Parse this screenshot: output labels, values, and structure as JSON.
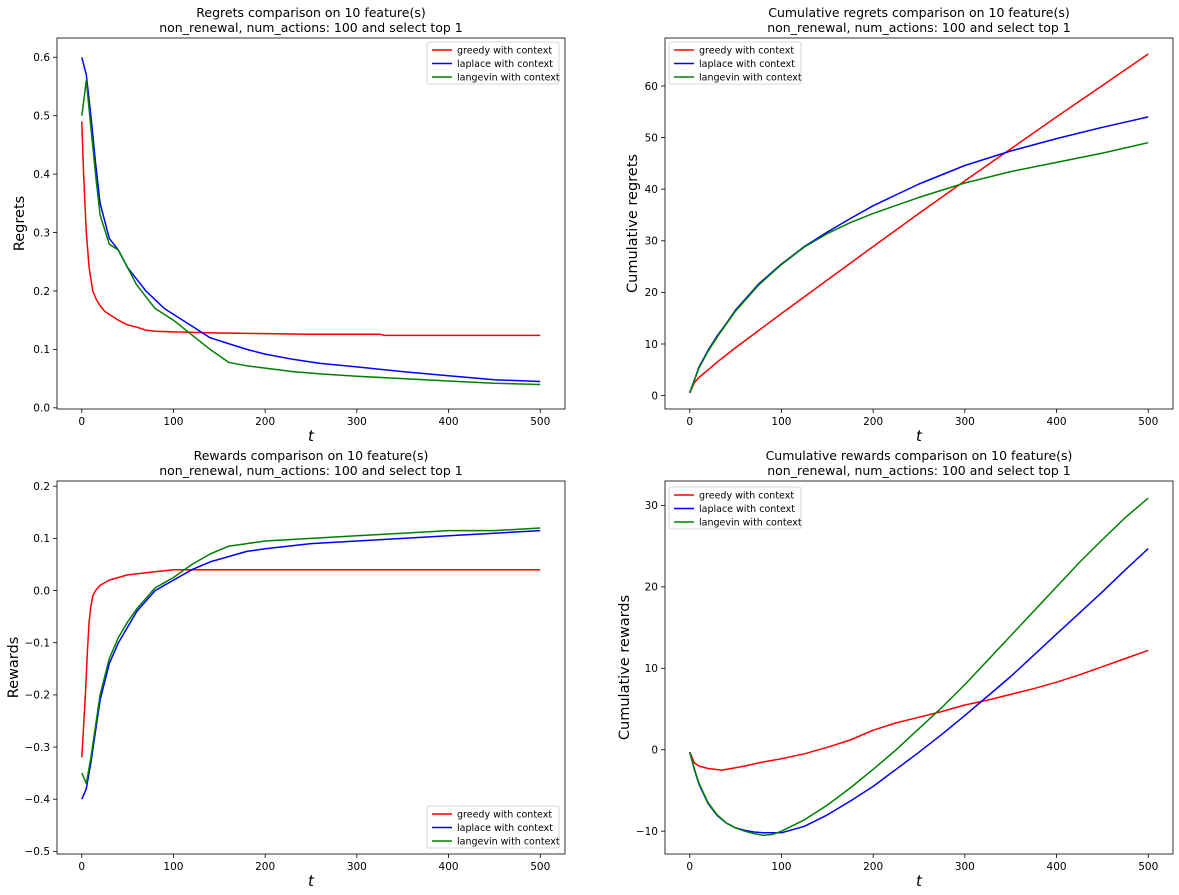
{
  "colors": {
    "greedy": "#ff0000",
    "laplace": "#0000ff",
    "langevin": "#008000"
  },
  "legend_entries": [
    "greedy with context",
    "laplace with context",
    "langevin with context"
  ],
  "chart_data": [
    {
      "type": "line",
      "id": "regrets",
      "title": "Regrets comparison on 10 feature(s)",
      "subtitle": "non_renewal, num_actions: 100 and select top 1",
      "xlabel": "t",
      "ylabel": "Regrets",
      "xlim": [
        -27,
        527
      ],
      "ylim": [
        -0.002,
        0.633
      ],
      "xticks": [
        0,
        100,
        200,
        300,
        400,
        500
      ],
      "yticks": [
        0.0,
        0.1,
        0.2,
        0.3,
        0.4,
        0.5,
        0.6
      ],
      "ytick_labels": [
        "0.0",
        "0.1",
        "0.2",
        "0.3",
        "0.4",
        "0.5",
        "0.6"
      ],
      "legend": "top-right",
      "grid": false,
      "series": [
        {
          "name": "greedy with context",
          "color_key": "greedy",
          "x": [
            0,
            2,
            5,
            8,
            12,
            16,
            20,
            25,
            30,
            40,
            50,
            60,
            70,
            80,
            100,
            150,
            200,
            250,
            300,
            325,
            330,
            400,
            450,
            500
          ],
          "y": [
            0.49,
            0.4,
            0.3,
            0.24,
            0.2,
            0.185,
            0.175,
            0.165,
            0.16,
            0.15,
            0.142,
            0.138,
            0.133,
            0.131,
            0.13,
            0.128,
            0.127,
            0.126,
            0.126,
            0.126,
            0.124,
            0.124,
            0.124,
            0.124
          ]
        },
        {
          "name": "laplace with context",
          "color_key": "laplace",
          "x": [
            0,
            5,
            10,
            15,
            20,
            30,
            40,
            50,
            60,
            70,
            80,
            90,
            100,
            120,
            140,
            160,
            180,
            200,
            230,
            260,
            300,
            350,
            400,
            450,
            500
          ],
          "y": [
            0.6,
            0.57,
            0.5,
            0.42,
            0.35,
            0.29,
            0.27,
            0.24,
            0.22,
            0.2,
            0.185,
            0.17,
            0.16,
            0.14,
            0.12,
            0.11,
            0.1,
            0.092,
            0.083,
            0.076,
            0.07,
            0.062,
            0.055,
            0.048,
            0.045
          ]
        },
        {
          "name": "langevin with context",
          "color_key": "langevin",
          "x": [
            0,
            5,
            10,
            15,
            20,
            30,
            40,
            50,
            60,
            70,
            80,
            90,
            100,
            120,
            140,
            160,
            180,
            200,
            230,
            260,
            300,
            350,
            400,
            450,
            500
          ],
          "y": [
            0.5,
            0.56,
            0.48,
            0.4,
            0.33,
            0.28,
            0.27,
            0.24,
            0.21,
            0.19,
            0.17,
            0.16,
            0.15,
            0.125,
            0.1,
            0.078,
            0.072,
            0.068,
            0.062,
            0.058,
            0.054,
            0.05,
            0.046,
            0.042,
            0.04
          ]
        }
      ]
    },
    {
      "type": "line",
      "id": "cum_regrets",
      "title": "Cumulative regrets comparison on 10 feature(s)",
      "subtitle": "non_renewal, num_actions: 100 and select top 1",
      "xlabel": "t",
      "ylabel": "Cumulative regrets",
      "xlim": [
        -27,
        527
      ],
      "ylim": [
        -2.6,
        69.3
      ],
      "xticks": [
        0,
        100,
        200,
        300,
        400,
        500
      ],
      "yticks": [
        0,
        10,
        20,
        30,
        40,
        50,
        60
      ],
      "ytick_labels": [
        "0",
        "10",
        "20",
        "30",
        "40",
        "50",
        "60"
      ],
      "legend": "top-left",
      "grid": false,
      "series": [
        {
          "name": "greedy with context",
          "color_key": "greedy",
          "x": [
            0,
            5,
            10,
            20,
            30,
            50,
            75,
            100,
            150,
            200,
            250,
            300,
            350,
            400,
            450,
            500
          ],
          "y": [
            0.5,
            2.5,
            3.5,
            5.0,
            6.5,
            9.3,
            12.6,
            15.9,
            22.4,
            28.9,
            35.3,
            41.6,
            47.8,
            54.0,
            60.1,
            66.2
          ]
        },
        {
          "name": "laplace with context",
          "color_key": "laplace",
          "x": [
            0,
            5,
            10,
            20,
            30,
            40,
            50,
            60,
            75,
            100,
            125,
            150,
            175,
            200,
            250,
            300,
            350,
            400,
            450,
            500
          ],
          "y": [
            0.6,
            3.0,
            5.5,
            8.8,
            11.6,
            14.0,
            16.6,
            18.6,
            21.6,
            25.5,
            28.9,
            31.7,
            34.3,
            36.8,
            41.0,
            44.6,
            47.4,
            49.8,
            52.0,
            54.0
          ]
        },
        {
          "name": "langevin with context",
          "color_key": "langevin",
          "x": [
            0,
            5,
            10,
            20,
            30,
            40,
            50,
            60,
            75,
            100,
            125,
            150,
            175,
            200,
            250,
            300,
            350,
            400,
            450,
            500
          ],
          "y": [
            0.5,
            2.9,
            5.3,
            8.6,
            11.4,
            13.9,
            16.4,
            18.4,
            21.4,
            25.4,
            28.8,
            31.4,
            33.5,
            35.3,
            38.4,
            41.2,
            43.4,
            45.2,
            47.0,
            49.0
          ]
        }
      ]
    },
    {
      "type": "line",
      "id": "rewards",
      "title": "Rewards comparison on 10 feature(s)",
      "subtitle": "non_renewal, num_actions: 100 and select top 1",
      "xlabel": "t",
      "ylabel": "Rewards",
      "xlim": [
        -27,
        527
      ],
      "ylim": [
        -0.505,
        0.21
      ],
      "xticks": [
        0,
        100,
        200,
        300,
        400,
        500
      ],
      "yticks": [
        -0.5,
        -0.4,
        -0.3,
        -0.2,
        -0.1,
        0.0,
        0.1,
        0.2
      ],
      "ytick_labels": [
        "−0.5",
        "−0.4",
        "−0.3",
        "−0.2",
        "−0.1",
        "0.0",
        "0.1",
        "0.2"
      ],
      "legend": "bottom-right",
      "grid": false,
      "series": [
        {
          "name": "greedy with context",
          "color_key": "greedy",
          "x": [
            0,
            2,
            4,
            6,
            8,
            10,
            12,
            15,
            20,
            30,
            40,
            50,
            75,
            100,
            150,
            200,
            250,
            300,
            350,
            400,
            450,
            500
          ],
          "y": [
            -0.32,
            -0.26,
            -0.2,
            -0.12,
            -0.06,
            -0.03,
            -0.01,
            0.0,
            0.01,
            0.02,
            0.025,
            0.03,
            0.035,
            0.04,
            0.04,
            0.04,
            0.04,
            0.04,
            0.04,
            0.04,
            0.04,
            0.04
          ]
        },
        {
          "name": "laplace with context",
          "color_key": "laplace",
          "x": [
            0,
            5,
            10,
            15,
            20,
            30,
            40,
            50,
            60,
            70,
            80,
            90,
            100,
            120,
            140,
            160,
            180,
            200,
            250,
            300,
            350,
            400,
            450,
            500
          ],
          "y": [
            -0.4,
            -0.38,
            -0.33,
            -0.27,
            -0.21,
            -0.14,
            -0.1,
            -0.07,
            -0.04,
            -0.02,
            0.0,
            0.01,
            0.02,
            0.04,
            0.055,
            0.065,
            0.075,
            0.08,
            0.09,
            0.095,
            0.1,
            0.105,
            0.11,
            0.115
          ]
        },
        {
          "name": "langevin with context",
          "color_key": "langevin",
          "x": [
            0,
            5,
            10,
            15,
            20,
            30,
            40,
            50,
            60,
            70,
            80,
            90,
            100,
            120,
            140,
            160,
            180,
            200,
            250,
            300,
            350,
            400,
            450,
            500
          ],
          "y": [
            -0.35,
            -0.37,
            -0.32,
            -0.26,
            -0.2,
            -0.13,
            -0.09,
            -0.06,
            -0.035,
            -0.015,
            0.005,
            0.015,
            0.025,
            0.05,
            0.07,
            0.085,
            0.09,
            0.095,
            0.1,
            0.105,
            0.11,
            0.115,
            0.115,
            0.12
          ]
        }
      ]
    },
    {
      "type": "line",
      "id": "cum_rewards",
      "title": "Cumulative rewards comparison on 10 feature(s)",
      "subtitle": "non_renewal, num_actions: 100 and select top 1",
      "xlabel": "t",
      "ylabel": "Cumulative rewards",
      "xlim": [
        -27,
        527
      ],
      "ylim": [
        -12.8,
        33.0
      ],
      "xticks": [
        0,
        100,
        200,
        300,
        400,
        500
      ],
      "yticks": [
        -10,
        0,
        10,
        20,
        30
      ],
      "ytick_labels": [
        "−10",
        "0",
        "10",
        "20",
        "30"
      ],
      "legend": "top-left",
      "grid": false,
      "series": [
        {
          "name": "greedy with context",
          "color_key": "greedy",
          "x": [
            0,
            5,
            10,
            20,
            35,
            50,
            60,
            80,
            100,
            125,
            150,
            175,
            200,
            225,
            250,
            275,
            300,
            325,
            350,
            375,
            400,
            425,
            450,
            475,
            500
          ],
          "y": [
            -0.3,
            -1.6,
            -2.0,
            -2.3,
            -2.5,
            -2.2,
            -2.0,
            -1.5,
            -1.1,
            -0.5,
            0.3,
            1.2,
            2.4,
            3.3,
            4.0,
            4.7,
            5.5,
            6.1,
            6.8,
            7.5,
            8.3,
            9.2,
            10.2,
            11.2,
            12.2
          ]
        },
        {
          "name": "laplace with context",
          "color_key": "laplace",
          "x": [
            0,
            5,
            10,
            20,
            30,
            40,
            50,
            60,
            70,
            80,
            90,
            100,
            125,
            150,
            175,
            200,
            225,
            250,
            275,
            300,
            325,
            350,
            375,
            400,
            425,
            450,
            475,
            500
          ],
          "y": [
            -0.3,
            -2.4,
            -4.2,
            -6.6,
            -8.1,
            -9.0,
            -9.6,
            -9.9,
            -10.1,
            -10.2,
            -10.2,
            -10.2,
            -9.4,
            -8.0,
            -6.3,
            -4.5,
            -2.4,
            -0.3,
            1.9,
            4.2,
            6.6,
            9.0,
            11.6,
            14.2,
            16.8,
            19.4,
            22.1,
            24.7
          ]
        },
        {
          "name": "langevin with context",
          "color_key": "langevin",
          "x": [
            0,
            5,
            10,
            20,
            30,
            40,
            50,
            60,
            70,
            80,
            90,
            100,
            125,
            150,
            175,
            200,
            225,
            250,
            275,
            300,
            325,
            350,
            375,
            400,
            425,
            450,
            475,
            500
          ],
          "y": [
            -0.3,
            -2.3,
            -4.1,
            -6.5,
            -8.0,
            -9.0,
            -9.6,
            -10.0,
            -10.3,
            -10.5,
            -10.4,
            -10.0,
            -8.6,
            -6.8,
            -4.7,
            -2.4,
            0.0,
            2.6,
            5.2,
            8.0,
            11.0,
            14.0,
            17.0,
            20.0,
            23.0,
            25.8,
            28.5,
            30.9
          ]
        }
      ]
    }
  ]
}
